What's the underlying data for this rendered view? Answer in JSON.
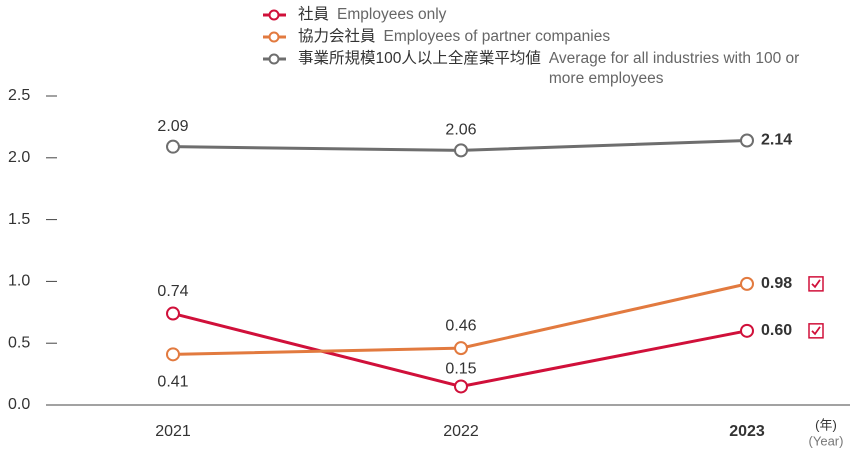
{
  "chart_data": {
    "type": "line",
    "categories": [
      "2021",
      "2022",
      "2023"
    ],
    "series": [
      {
        "name": "社員",
        "name_en": "Employees only",
        "color": "#d0103a",
        "values": [
          0.74,
          0.15,
          0.6
        ],
        "value_labels": [
          "0.74",
          "0.15",
          "0.60"
        ]
      },
      {
        "name": "協力会社員",
        "name_en": "Employees of partner companies",
        "color": "#e27a3f",
        "values": [
          0.41,
          0.46,
          0.98
        ],
        "value_labels": [
          "0.41",
          "0.46",
          "0.98"
        ]
      },
      {
        "name": "事業所規模100人以上全産業平均値",
        "name_en": "Average for all industries with 100 or more employees",
        "color": "#6e6e6e",
        "values": [
          2.09,
          2.06,
          2.14
        ],
        "value_labels": [
          "2.09",
          "2.06",
          "2.14"
        ]
      }
    ],
    "ylim": [
      0,
      2.5
    ],
    "yticks": [
      {
        "value": 0,
        "label": "0.0"
      },
      {
        "value": 0.5,
        "label": "0.5"
      },
      {
        "value": 1,
        "label": "1.0"
      },
      {
        "value": 1.5,
        "label": "1.5"
      },
      {
        "value": 2,
        "label": "2.0"
      },
      {
        "value": 2.5,
        "label": "2.5"
      }
    ],
    "xlabel": "(年)",
    "xlabel_en": "(Year)"
  }
}
